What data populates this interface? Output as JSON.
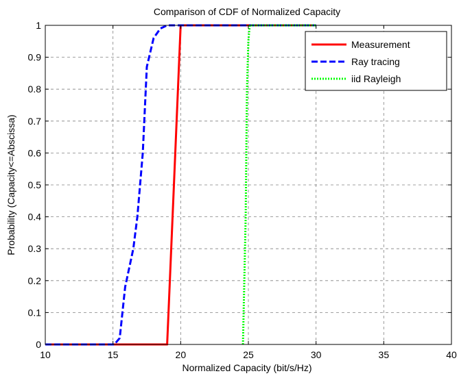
{
  "chart_data": {
    "type": "line",
    "title": "Comparison of CDF of Normalized Capacity",
    "xlabel": "Normalized Capacity (bit/s/Hz)",
    "ylabel": "Probability (Capacity<=Abscissa)",
    "xlim": [
      10,
      40
    ],
    "ylim": [
      0,
      1
    ],
    "xticks": [
      "10",
      "15",
      "20",
      "25",
      "30",
      "35",
      "40"
    ],
    "yticks": [
      "0",
      "0.1",
      "0.2",
      "0.3",
      "0.4",
      "0.5",
      "0.6",
      "0.7",
      "0.8",
      "0.9",
      "1"
    ],
    "grid": true,
    "legend_position": "top-right",
    "series": [
      {
        "name": "Measurement",
        "color": "#ff0000",
        "style": "solid",
        "x": [
          10,
          19.0,
          19.1,
          19.5,
          20.0,
          30
        ],
        "y": [
          0,
          0,
          0.1,
          0.5,
          1.0,
          1.0
        ]
      },
      {
        "name": "Ray tracing",
        "color": "#0000ff",
        "style": "dashed",
        "x": [
          10,
          15.1,
          15.5,
          15.9,
          16.5,
          16.8,
          17.2,
          17.5,
          18.0,
          18.5,
          19.0,
          30
        ],
        "y": [
          0,
          0,
          0.02,
          0.18,
          0.3,
          0.4,
          0.6,
          0.87,
          0.96,
          0.99,
          1.0,
          1.0
        ]
      },
      {
        "name": "iid Rayleigh",
        "color": "#00ff00",
        "style": "dotted",
        "x": [
          24.6,
          24.7,
          24.8,
          24.85,
          24.9,
          25.0,
          25.1,
          30
        ],
        "y": [
          0,
          0.2,
          0.4,
          0.6,
          0.8,
          0.95,
          1.0,
          1.0
        ]
      }
    ]
  }
}
